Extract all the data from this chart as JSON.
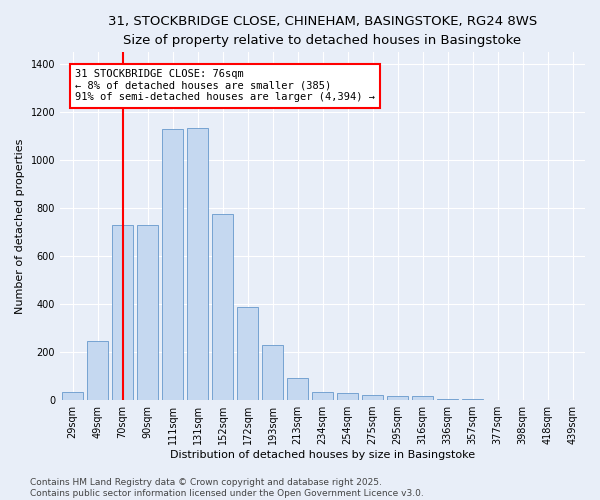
{
  "title_line1": "31, STOCKBRIDGE CLOSE, CHINEHAM, BASINGSTOKE, RG24 8WS",
  "title_line2": "Size of property relative to detached houses in Basingstoke",
  "xlabel": "Distribution of detached houses by size in Basingstoke",
  "ylabel": "Number of detached properties",
  "categories": [
    "29sqm",
    "49sqm",
    "70sqm",
    "90sqm",
    "111sqm",
    "131sqm",
    "152sqm",
    "172sqm",
    "193sqm",
    "213sqm",
    "234sqm",
    "254sqm",
    "275sqm",
    "295sqm",
    "316sqm",
    "336sqm",
    "357sqm",
    "377sqm",
    "398sqm",
    "418sqm",
    "439sqm"
  ],
  "values": [
    35,
    248,
    728,
    730,
    1130,
    1135,
    775,
    390,
    228,
    90,
    35,
    30,
    20,
    15,
    15,
    5,
    3,
    0,
    0,
    0,
    0
  ],
  "bar_color": "#c5d8f0",
  "bar_edge_color": "#6699cc",
  "vline_x": 2,
  "vline_color": "red",
  "annotation_text": "31 STOCKBRIDGE CLOSE: 76sqm\n← 8% of detached houses are smaller (385)\n91% of semi-detached houses are larger (4,394) →",
  "annotation_box_color": "white",
  "annotation_box_edge_color": "red",
  "ylim": [
    0,
    1450
  ],
  "yticks": [
    0,
    200,
    400,
    600,
    800,
    1000,
    1200,
    1400
  ],
  "background_color": "#e8eef8",
  "footer_text": "Contains HM Land Registry data © Crown copyright and database right 2025.\nContains public sector information licensed under the Open Government Licence v3.0.",
  "title_fontsize": 9.5,
  "subtitle_fontsize": 8.5,
  "axis_label_fontsize": 8,
  "tick_fontsize": 7,
  "annotation_fontsize": 7.5,
  "footer_fontsize": 6.5
}
